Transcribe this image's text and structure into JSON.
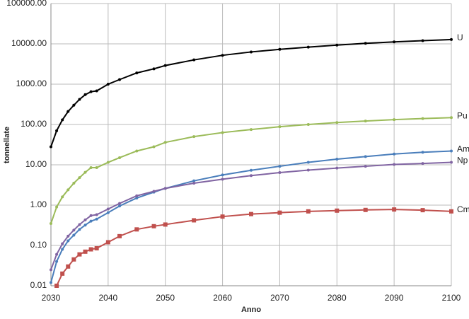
{
  "chart_data": {
    "type": "line",
    "x_label": "Anno",
    "y_label": "tonnellate",
    "log_y": true,
    "grid": true,
    "x": [
      2030,
      2031,
      2032,
      2033,
      2034,
      2035,
      2036,
      2037,
      2038,
      2040,
      2042,
      2045,
      2048,
      2050,
      2055,
      2060,
      2065,
      2070,
      2075,
      2080,
      2085,
      2090,
      2095,
      2100
    ],
    "xlim": [
      2030,
      2100
    ],
    "xticks": [
      2030,
      2040,
      2050,
      2060,
      2070,
      2080,
      2090,
      2100
    ],
    "ylim": [
      0.01,
      100000
    ],
    "yticks": [
      {
        "value": 0.01,
        "label": "0.01"
      },
      {
        "value": 0.1,
        "label": "0.10"
      },
      {
        "value": 1,
        "label": "1.00"
      },
      {
        "value": 10,
        "label": "10.00"
      },
      {
        "value": 100,
        "label": "100.00"
      },
      {
        "value": 1000,
        "label": "1000.00"
      },
      {
        "value": 10000,
        "label": "10000.00"
      },
      {
        "value": 100000,
        "label": "100000.00"
      }
    ],
    "series": [
      {
        "name": "U",
        "color": "#000000",
        "marker": "plus",
        "values": [
          28,
          70,
          130,
          210,
          300,
          420,
          550,
          650,
          680,
          1000,
          1300,
          1900,
          2400,
          2900,
          4000,
          5200,
          6300,
          7300,
          8300,
          9300,
          10300,
          11200,
          12000,
          12800
        ]
      },
      {
        "name": "Pu",
        "color": "#9bbb59",
        "marker": "plus",
        "values": [
          0.35,
          0.9,
          1.6,
          2.4,
          3.5,
          4.8,
          6.5,
          8.5,
          8.5,
          11.5,
          15,
          22,
          28,
          36,
          50,
          63,
          75,
          88,
          100,
          112,
          122,
          132,
          140,
          148
        ]
      },
      {
        "name": "Am",
        "color": "#4a7ebb",
        "marker": "plus",
        "values": [
          0.012,
          0.04,
          0.08,
          0.13,
          0.18,
          0.25,
          0.32,
          0.4,
          0.45,
          0.65,
          0.95,
          1.5,
          2.1,
          2.6,
          4.0,
          5.6,
          7.3,
          9.2,
          11.5,
          13.8,
          16,
          18.5,
          20.5,
          22
        ]
      },
      {
        "name": "Np",
        "color": "#8064a2",
        "marker": "plus",
        "values": [
          0.025,
          0.06,
          0.11,
          0.17,
          0.24,
          0.33,
          0.43,
          0.55,
          0.58,
          0.8,
          1.1,
          1.7,
          2.2,
          2.6,
          3.5,
          4.4,
          5.4,
          6.4,
          7.4,
          8.3,
          9.2,
          10.2,
          10.8,
          11.5
        ]
      },
      {
        "name": "Cm",
        "color": "#c0504d",
        "marker": "square",
        "values": [
          null,
          0.01,
          0.02,
          0.03,
          0.045,
          0.06,
          0.07,
          0.08,
          0.085,
          0.12,
          0.17,
          0.25,
          0.3,
          0.33,
          0.42,
          0.52,
          0.6,
          0.65,
          0.7,
          0.73,
          0.76,
          0.78,
          0.75,
          0.7
        ]
      }
    ]
  }
}
